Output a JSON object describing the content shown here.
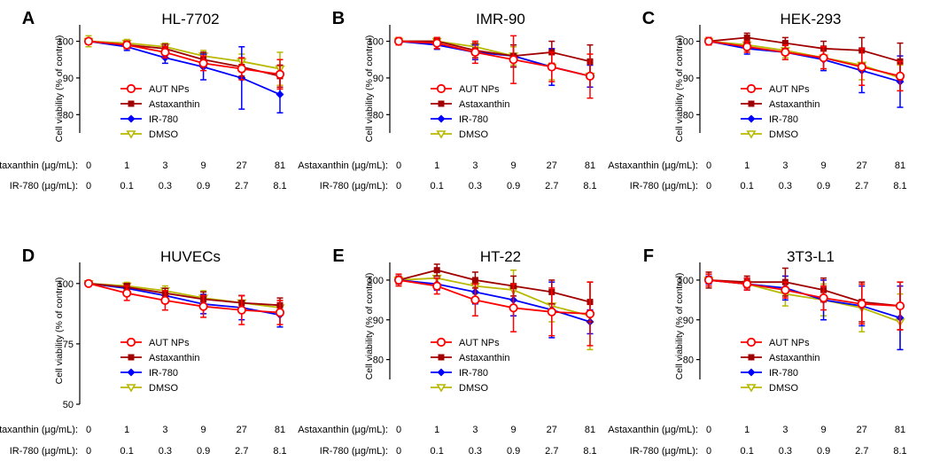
{
  "figure": {
    "y_axis_label": "Cell viability (% of control)",
    "row_labels": [
      "Astaxanthin (µg/mL):",
      "IR-780 (µg/mL):"
    ],
    "astaxanthin_doses": [
      "0",
      "1",
      "3",
      "9",
      "27",
      "81"
    ],
    "ir780_doses": [
      "0",
      "0.1",
      "0.3",
      "0.9",
      "2.7",
      "8.1"
    ],
    "legend": [
      "AUT NPs",
      "Astaxanthin",
      "IR-780",
      "DMSO"
    ],
    "series_colors": [
      "#ff0000",
      "#a00000",
      "#0000ff",
      "#b8b800"
    ]
  },
  "chart_data": [
    {
      "type": "line",
      "panel": "A",
      "title": "HL-7702",
      "ylim": [
        75,
        104
      ],
      "yticks": [
        80,
        90,
        100
      ],
      "x": [
        "0",
        "1",
        "3",
        "9",
        "27",
        "81"
      ],
      "series": [
        {
          "name": "AUT NPs",
          "values": [
            100,
            99,
            97,
            94,
            92.5,
            91
          ],
          "errors": [
            0.8,
            1,
            1.5,
            2,
            3,
            4
          ]
        },
        {
          "name": "Astaxanthin",
          "values": [
            100,
            99,
            98,
            95,
            93,
            90.5
          ],
          "errors": [
            0.5,
            1,
            1.2,
            2,
            2.5,
            3
          ]
        },
        {
          "name": "IR-780",
          "values": [
            100,
            98.5,
            95.5,
            93,
            90,
            85.5
          ],
          "errors": [
            0.6,
            1,
            1.5,
            3.5,
            8.5,
            5
          ]
        },
        {
          "name": "DMSO",
          "values": [
            100,
            99.5,
            98.5,
            96,
            94.5,
            92.5
          ],
          "errors": [
            1.5,
            1,
            1,
            1.5,
            2,
            4.5
          ]
        }
      ]
    },
    {
      "type": "line",
      "panel": "B",
      "title": "IMR-90",
      "ylim": [
        75,
        104
      ],
      "yticks": [
        80,
        90,
        100
      ],
      "x": [
        "0",
        "1",
        "3",
        "9",
        "27",
        "81"
      ],
      "series": [
        {
          "name": "AUT NPs",
          "values": [
            100,
            99.5,
            97,
            95,
            93,
            90.5
          ],
          "errors": [
            1,
            1.5,
            3,
            6.5,
            4,
            6
          ]
        },
        {
          "name": "Astaxanthin",
          "values": [
            100,
            100,
            97.5,
            96,
            97,
            94.5
          ],
          "errors": [
            0.5,
            1,
            2,
            3,
            3,
            4.5
          ]
        },
        {
          "name": "IR-780",
          "values": [
            100,
            99,
            97,
            96,
            93,
            90.5
          ],
          "errors": [
            0.8,
            1.2,
            2,
            3,
            5,
            3
          ]
        },
        {
          "name": "DMSO",
          "values": [
            100,
            100,
            98.5,
            96,
            93,
            90.5
          ],
          "errors": [
            1,
            1,
            1.5,
            2.5,
            3.5,
            3
          ]
        }
      ]
    },
    {
      "type": "line",
      "panel": "C",
      "title": "HEK-293",
      "ylim": [
        75,
        104
      ],
      "yticks": [
        80,
        90,
        100
      ],
      "x": [
        "0",
        "1",
        "3",
        "9",
        "27",
        "81"
      ],
      "series": [
        {
          "name": "AUT NPs",
          "values": [
            100,
            98.5,
            97,
            95.5,
            93,
            90.5
          ],
          "errors": [
            1,
            1.5,
            2,
            3,
            5,
            4
          ]
        },
        {
          "name": "Astaxanthin",
          "values": [
            100,
            101,
            99.5,
            98,
            97.5,
            94.5
          ],
          "errors": [
            0.5,
            1.2,
            1.5,
            2,
            3.5,
            5
          ]
        },
        {
          "name": "IR-780",
          "values": [
            100,
            98,
            97,
            95,
            92,
            89
          ],
          "errors": [
            1,
            1.5,
            2,
            3,
            6,
            7
          ]
        },
        {
          "name": "DMSO",
          "values": [
            100,
            99,
            97.5,
            95.5,
            93.5,
            90
          ],
          "errors": [
            1,
            1.5,
            2,
            3,
            4,
            3.5
          ]
        }
      ]
    },
    {
      "type": "line",
      "panel": "D",
      "title": "HUVECs",
      "ylim": [
        50,
        108
      ],
      "yticks": [
        50,
        75,
        100
      ],
      "x": [
        "0",
        "1",
        "3",
        "9",
        "27",
        "81"
      ],
      "series": [
        {
          "name": "AUT NPs",
          "values": [
            100,
            96,
            93,
            90.5,
            89,
            88
          ],
          "errors": [
            1,
            3,
            4,
            4.5,
            6,
            5
          ]
        },
        {
          "name": "Astaxanthin",
          "values": [
            100,
            98.5,
            96,
            93.5,
            92,
            91
          ],
          "errors": [
            1,
            1.5,
            2,
            3,
            3,
            3
          ]
        },
        {
          "name": "IR-780",
          "values": [
            100,
            98,
            95,
            91.5,
            90,
            87
          ],
          "errors": [
            1,
            2,
            3,
            4,
            5,
            5
          ]
        },
        {
          "name": "DMSO",
          "values": [
            100,
            99,
            97,
            94,
            92,
            90
          ],
          "errors": [
            1,
            1.5,
            2,
            3,
            3,
            3
          ]
        }
      ]
    },
    {
      "type": "line",
      "panel": "E",
      "title": "HT-22",
      "ylim": [
        75,
        104
      ],
      "yticks": [
        80,
        90,
        100
      ],
      "x": [
        "0",
        "1",
        "3",
        "9",
        "27",
        "81"
      ],
      "series": [
        {
          "name": "AUT NPs",
          "values": [
            100,
            98.5,
            95,
            93,
            92,
            91.5
          ],
          "errors": [
            1.5,
            2,
            4,
            6,
            6,
            8
          ]
        },
        {
          "name": "Astaxanthin",
          "values": [
            100,
            102.5,
            100,
            98.5,
            97,
            94.5
          ],
          "errors": [
            1,
            1.5,
            2,
            2.5,
            3,
            5
          ]
        },
        {
          "name": "IR-780",
          "values": [
            100,
            99,
            97,
            95,
            92.5,
            89.5
          ],
          "errors": [
            1,
            1.5,
            3,
            4,
            7,
            3
          ]
        },
        {
          "name": "DMSO",
          "values": [
            100,
            100.5,
            98.5,
            97.5,
            93.5,
            91
          ],
          "errors": [
            1,
            1.5,
            2,
            5,
            4,
            8.5
          ]
        }
      ]
    },
    {
      "type": "line",
      "panel": "F",
      "title": "3T3-L1",
      "ylim": [
        75,
        104
      ],
      "yticks": [
        80,
        90,
        100
      ],
      "x": [
        "0",
        "1",
        "3",
        "9",
        "27",
        "81"
      ],
      "series": [
        {
          "name": "AUT NPs",
          "values": [
            100,
            99,
            97.5,
            95.5,
            94,
            93.5
          ],
          "errors": [
            1.5,
            1.5,
            2,
            3,
            5,
            6
          ]
        },
        {
          "name": "Astaxanthin",
          "values": [
            100,
            99.5,
            99.5,
            97.5,
            94.5,
            93.5
          ],
          "errors": [
            2,
            1.5,
            3.5,
            3,
            5,
            6
          ]
        },
        {
          "name": "IR-780",
          "values": [
            100,
            99,
            98,
            95,
            93.5,
            90.5
          ],
          "errors": [
            1,
            1.5,
            3,
            5,
            5,
            8
          ]
        },
        {
          "name": "DMSO",
          "values": [
            100,
            99,
            96.5,
            95,
            93,
            89.5
          ],
          "errors": [
            1.5,
            1.5,
            3,
            4,
            6,
            7
          ]
        }
      ]
    }
  ]
}
